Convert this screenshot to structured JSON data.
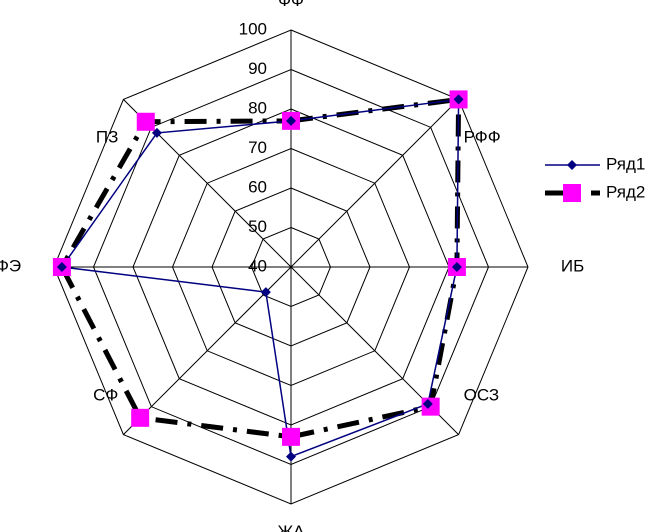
{
  "chart_data": {
    "type": "radar",
    "categories": [
      "ФФ",
      "РФФ",
      "ИБ",
      "ОСЗ",
      "ЖА",
      "СФ",
      "РФЭ",
      "ПЗ"
    ],
    "series": [
      {
        "name": "Ряд1",
        "color": "#000080",
        "marker_color": "#000080",
        "marker": "diamond",
        "values": [
          77,
          100,
          82,
          89,
          88,
          49,
          98,
          88
        ]
      },
      {
        "name": "Ряд2",
        "color": "#000000",
        "marker_color": "#ff00ff",
        "marker": "square",
        "values": [
          77,
          100,
          82,
          90,
          83,
          94,
          98,
          92
        ]
      }
    ],
    "ylim": [
      40,
      100
    ],
    "yticks": [
      40,
      50,
      60,
      70,
      80,
      90,
      100
    ],
    "grid": true,
    "legend": "right"
  }
}
